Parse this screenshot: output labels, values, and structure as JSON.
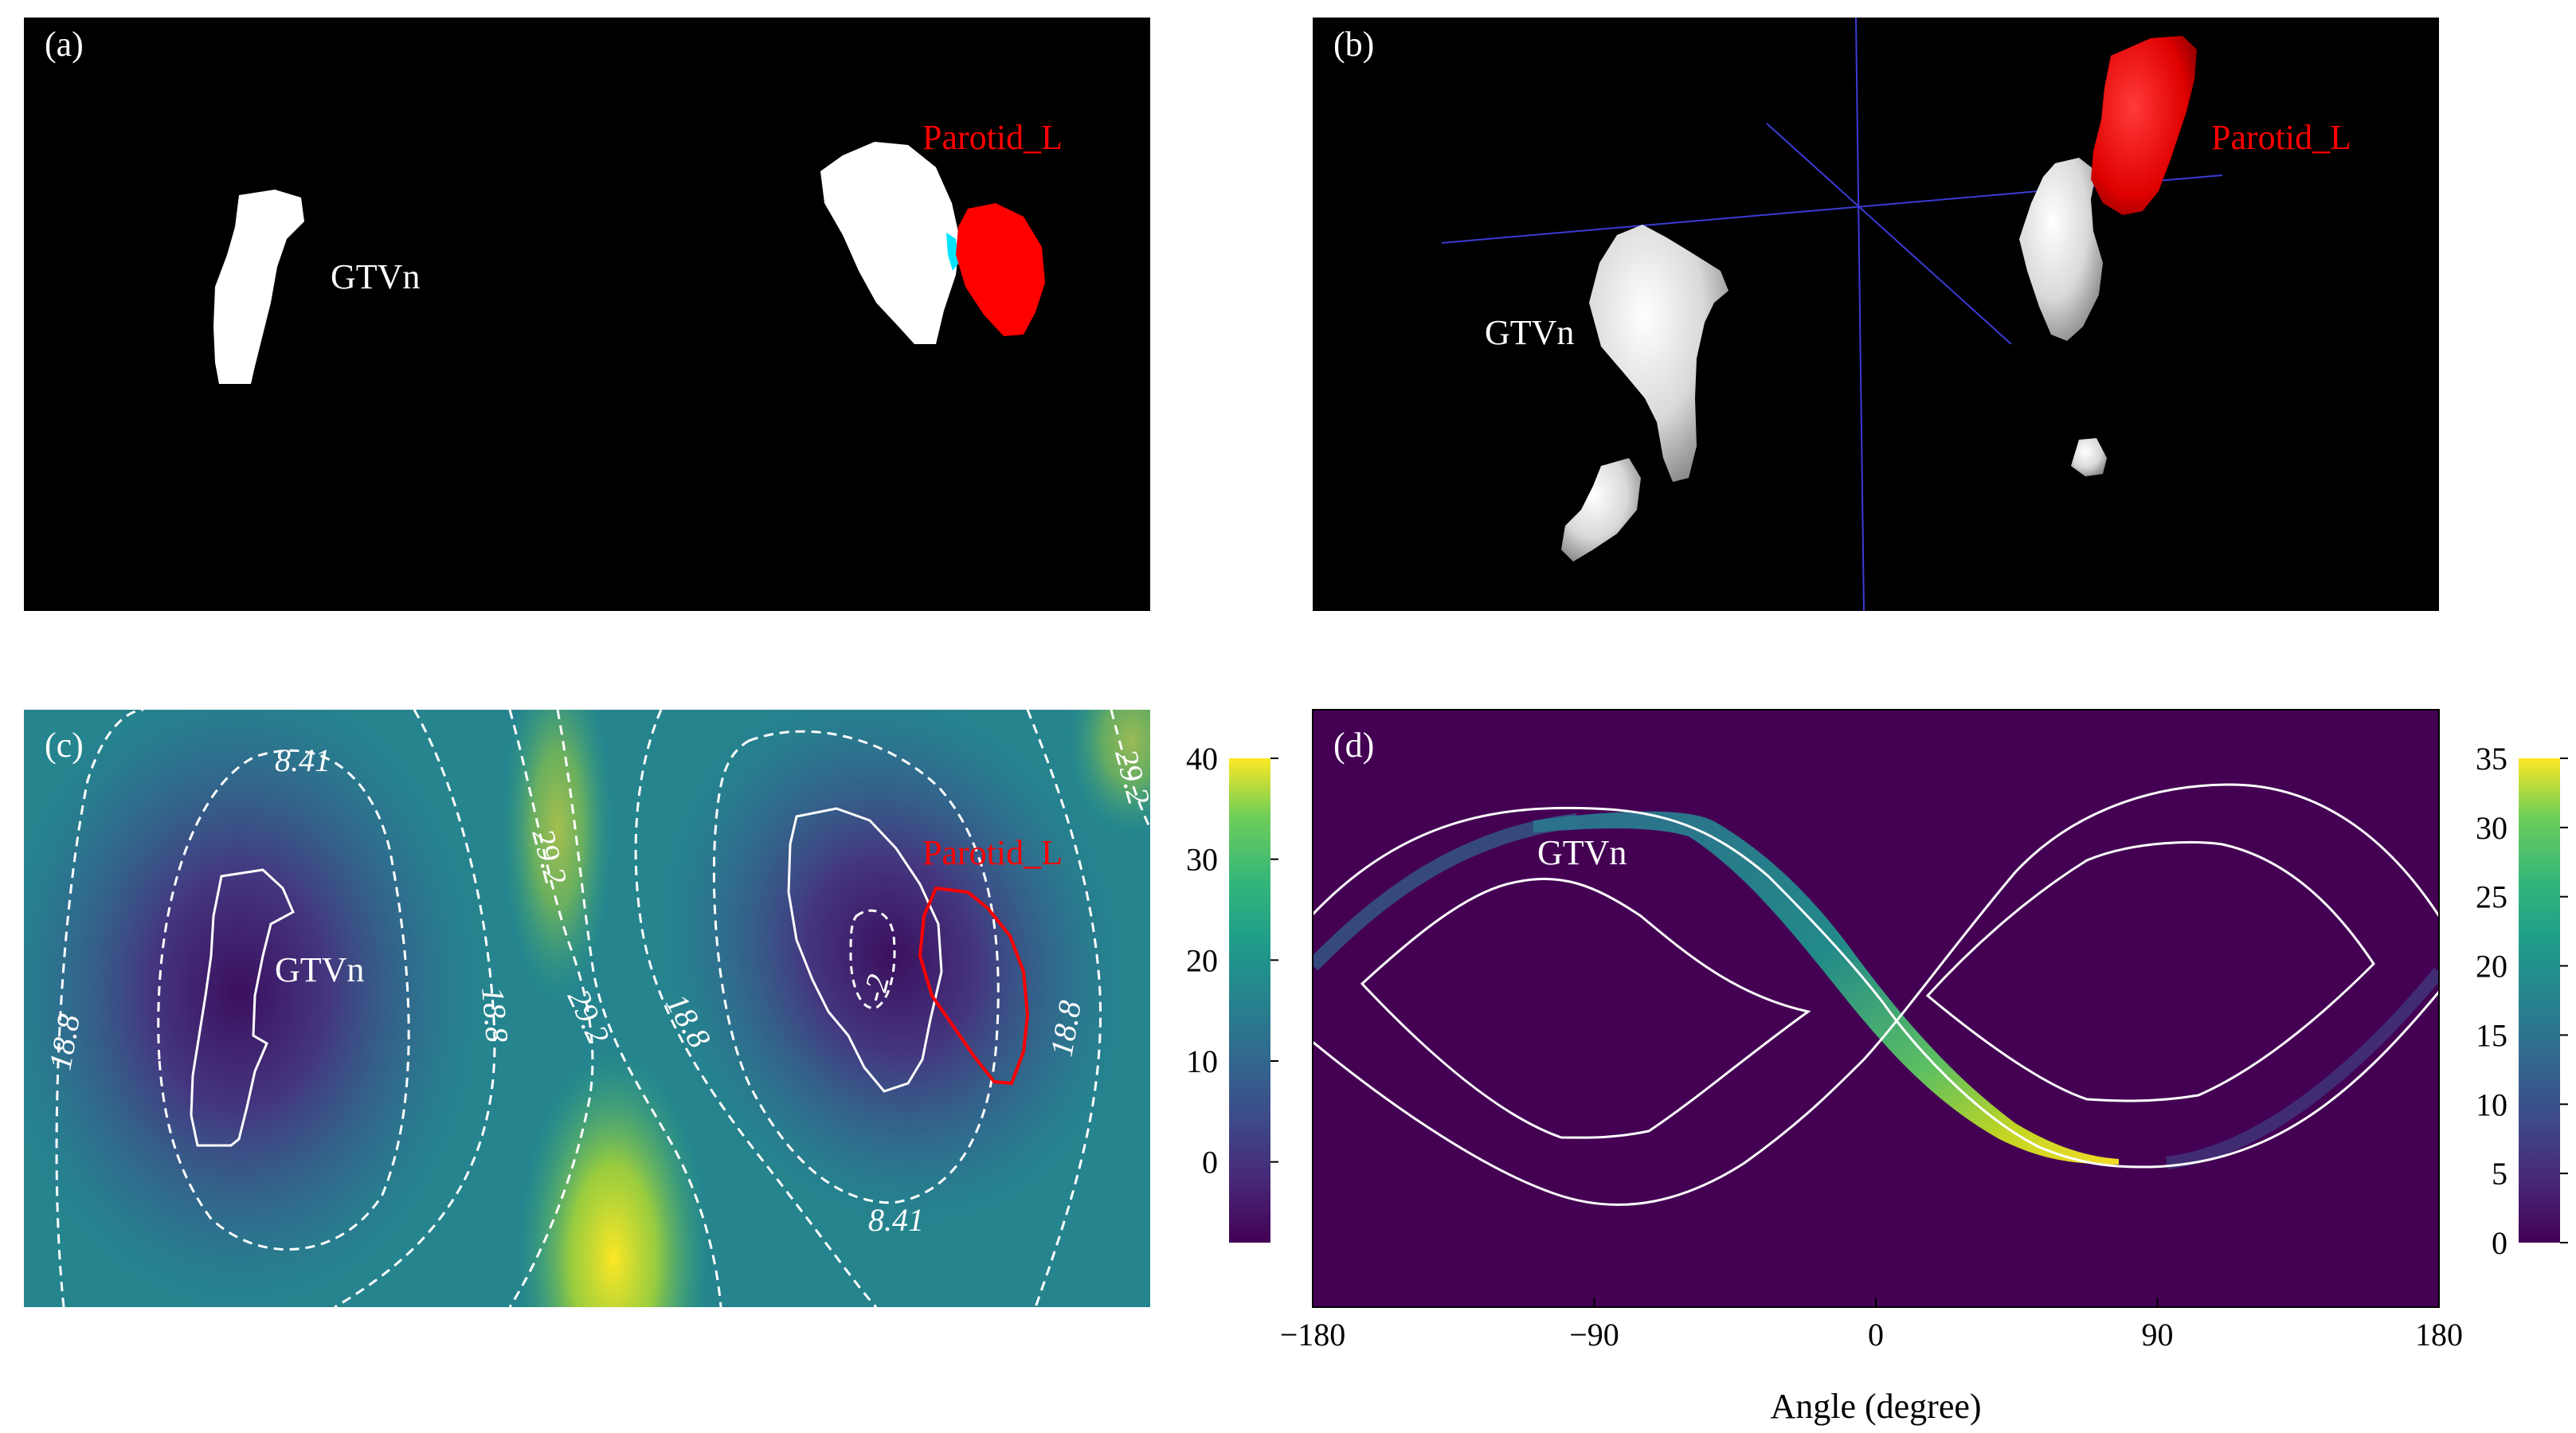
{
  "figure": {
    "panels": [
      {
        "id": "a",
        "label": "(a)",
        "annotations": {
          "gtvn": "GTVn",
          "parotid": "Parotid_L"
        }
      },
      {
        "id": "b",
        "label": "(b)",
        "annotations": {
          "gtvn": "GTVn",
          "parotid": "Parotid_L"
        }
      },
      {
        "id": "c",
        "label": "(c)",
        "annotations": {
          "gtvn": "GTVn",
          "parotid": "Parotid_L"
        }
      },
      {
        "id": "d",
        "label": "(d)",
        "annotations": {
          "gtvn": "GTVn"
        }
      }
    ],
    "colors": {
      "background_black": "#000000",
      "structure_white": "#ffffff",
      "parotid_red": "#ff0000",
      "overlap_cyan": "#00e5ff",
      "axis_blue": "#3b3bd6",
      "viridis_low": "#440154",
      "viridis_mid": "#21918c",
      "viridis_high": "#fde725"
    }
  },
  "chart_data": [
    {
      "type": "heatmap",
      "panel": "c",
      "title": "",
      "description_in_image": "distance map with contour lines",
      "contour_labels": [
        "8.41",
        "18.8",
        "29.2",
        "-2",
        "29.2",
        "18.8",
        "18.8",
        "8.41",
        "18.8",
        "29.2"
      ],
      "contour_levels": [
        -2,
        8.41,
        18.8,
        29.2
      ],
      "colorbar": {
        "min": -8,
        "max": 40,
        "ticks": [
          0,
          10,
          20,
          30,
          40
        ],
        "tick_labels": [
          "0",
          "10",
          "20",
          "30",
          "40"
        ],
        "colormap": "viridis"
      }
    },
    {
      "type": "heatmap",
      "panel": "d",
      "title": "",
      "xlabel": "Angle (degree)",
      "ylabel": "",
      "xlim": [
        -180,
        180
      ],
      "x_ticks": [
        -180,
        -90,
        0,
        90,
        180
      ],
      "x_tick_labels": [
        "−180",
        "−90",
        "0",
        "90",
        "180"
      ],
      "colorbar": {
        "min": 0,
        "max": 35,
        "ticks": [
          0,
          5,
          10,
          15,
          20,
          25,
          30,
          35
        ],
        "tick_labels": [
          "0",
          "5",
          "10",
          "15",
          "20",
          "25",
          "30",
          "35"
        ],
        "colormap": "viridis"
      }
    }
  ]
}
